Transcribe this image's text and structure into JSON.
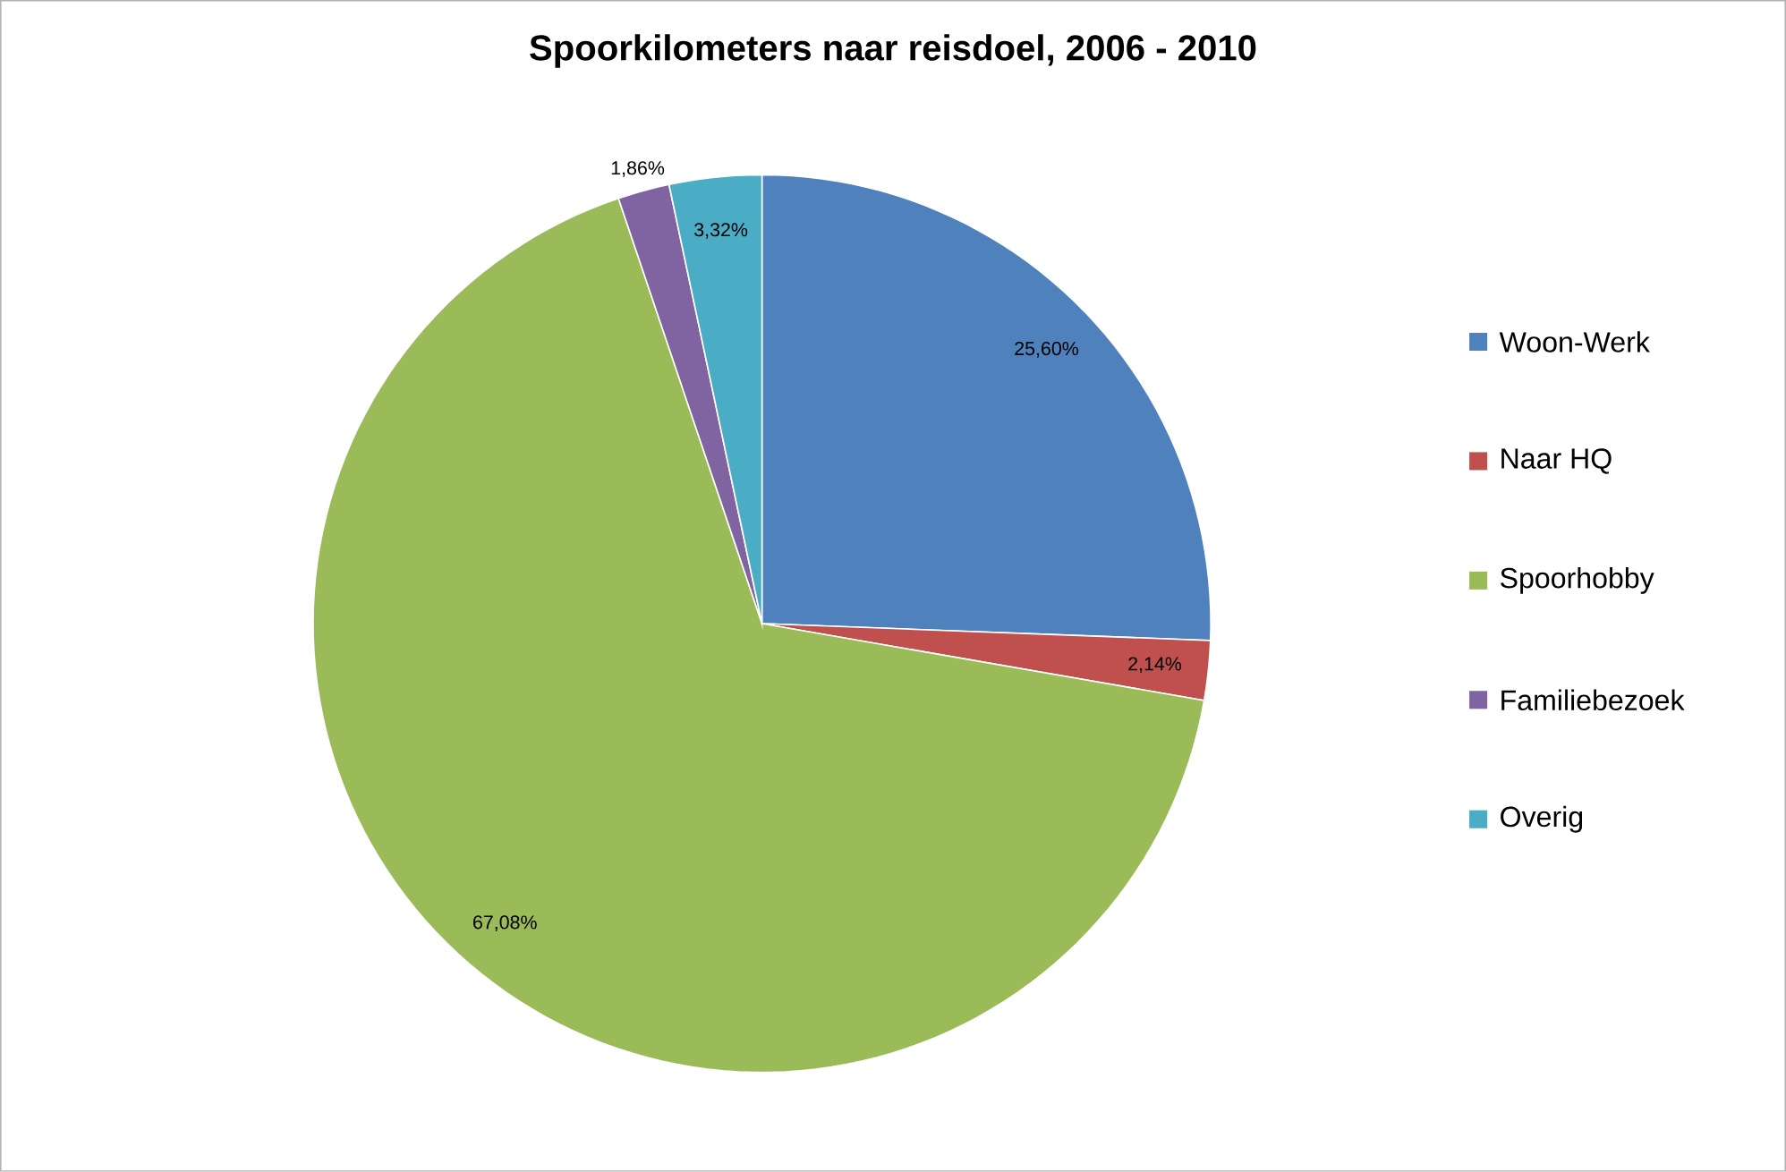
{
  "chart_data": {
    "type": "pie",
    "title": "Spoorkilometers naar reisdoel, 2006 - 2010",
    "categories": [
      "Woon-Werk",
      "Naar HQ",
      "Spoorhobby",
      "Familiebezoek",
      "Overig"
    ],
    "values": [
      25.6,
      2.14,
      67.08,
      1.86,
      3.32
    ],
    "colors": [
      "#4f81bd",
      "#c0504d",
      "#9bbb59",
      "#8064a2",
      "#4bacc6"
    ],
    "value_labels": [
      "25,60%",
      "2,14%",
      "67,08%",
      "1,86%",
      "3,32%"
    ],
    "legend": "right"
  }
}
